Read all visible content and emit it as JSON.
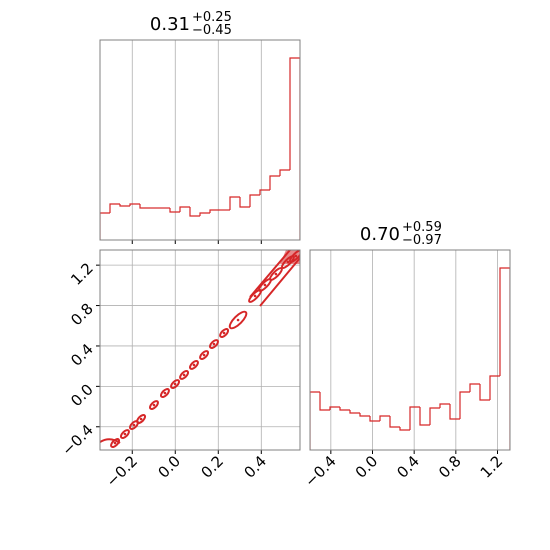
{
  "chart_data": [
    {
      "type": "histogram",
      "color": "#d62728",
      "title": {
        "value": "0.31",
        "upper": "+0.25",
        "lower": "−0.45"
      },
      "bins": [
        -0.35,
        -0.3035,
        -0.257,
        -0.2105,
        -0.164,
        -0.1175,
        -0.071,
        -0.0245,
        0.022,
        0.0685,
        0.115,
        0.1615,
        0.208,
        0.2545,
        0.301,
        0.3475,
        0.394,
        0.4405,
        0.487,
        0.5335,
        0.58
      ],
      "values": [
        27,
        36,
        34,
        36,
        32,
        32,
        32,
        28,
        33,
        24,
        27,
        30,
        30,
        43,
        33,
        45,
        50,
        64,
        70,
        182
      ],
      "xlim": [
        -0.35,
        0.58
      ],
      "ylim": [
        0,
        200
      ],
      "xticks": [
        {
          "value": -0.2,
          "label": "−0.2"
        },
        {
          "value": 0,
          "label": "0.0"
        },
        {
          "value": 0.2,
          "label": "0.2"
        },
        {
          "value": 0.4,
          "label": "0.4"
        }
      ],
      "grid": true
    },
    {
      "type": "contour",
      "color": "#d62728",
      "x": [
        -0.28,
        -0.234,
        -0.192,
        -0.159,
        -0.099,
        -0.048,
        -0.001,
        0.041,
        0.087,
        0.134,
        0.18,
        0.227,
        0.292,
        0.371,
        0.417,
        0.468,
        0.524,
        0.561
      ],
      "y": [
        -0.561,
        -0.472,
        -0.383,
        -0.323,
        -0.185,
        -0.066,
        0.023,
        0.113,
        0.212,
        0.31,
        0.419,
        0.528,
        0.657,
        0.895,
        1.004,
        1.112,
        1.231,
        1.291
      ],
      "xlim": [
        -0.35,
        0.58
      ],
      "ylim": [
        -0.63,
        1.35
      ],
      "xticks": [
        {
          "value": -0.2,
          "label": "−0.2"
        },
        {
          "value": 0,
          "label": "0.0"
        },
        {
          "value": 0.2,
          "label": "0.2"
        },
        {
          "value": 0.4,
          "label": "0.4"
        }
      ],
      "yticks": [
        {
          "value": -0.4,
          "label": "−0.4"
        },
        {
          "value": 0,
          "label": "0.0"
        },
        {
          "value": 0.4,
          "label": "0.4"
        },
        {
          "value": 0.8,
          "label": "0.8"
        },
        {
          "value": 1.2,
          "label": "1.2"
        }
      ],
      "grid": true
    },
    {
      "type": "histogram",
      "color": "#d62728",
      "title": {
        "value": "0.70",
        "upper": "+0.59",
        "lower": "−0.97"
      },
      "bins": [
        -0.6,
        -0.504,
        -0.408,
        -0.312,
        -0.216,
        -0.12,
        -0.024,
        0.072,
        0.168,
        0.264,
        0.36,
        0.456,
        0.552,
        0.648,
        0.744,
        0.84,
        0.936,
        1.032,
        1.128,
        1.224,
        1.32
      ],
      "values": [
        58,
        40,
        43,
        40,
        37,
        34,
        29,
        34,
        23,
        20,
        43,
        25,
        42,
        46,
        31,
        58,
        66,
        50,
        74,
        182
      ],
      "xlim": [
        -0.6,
        1.32
      ],
      "ylim": [
        0,
        200
      ],
      "xticks": [
        {
          "value": -0.4,
          "label": "−0.4"
        },
        {
          "value": 0,
          "label": "0.0"
        },
        {
          "value": 0.4,
          "label": "0.4"
        },
        {
          "value": 0.8,
          "label": "0.8"
        },
        {
          "value": 1.2,
          "label": "1.2"
        }
      ],
      "grid": true
    }
  ]
}
